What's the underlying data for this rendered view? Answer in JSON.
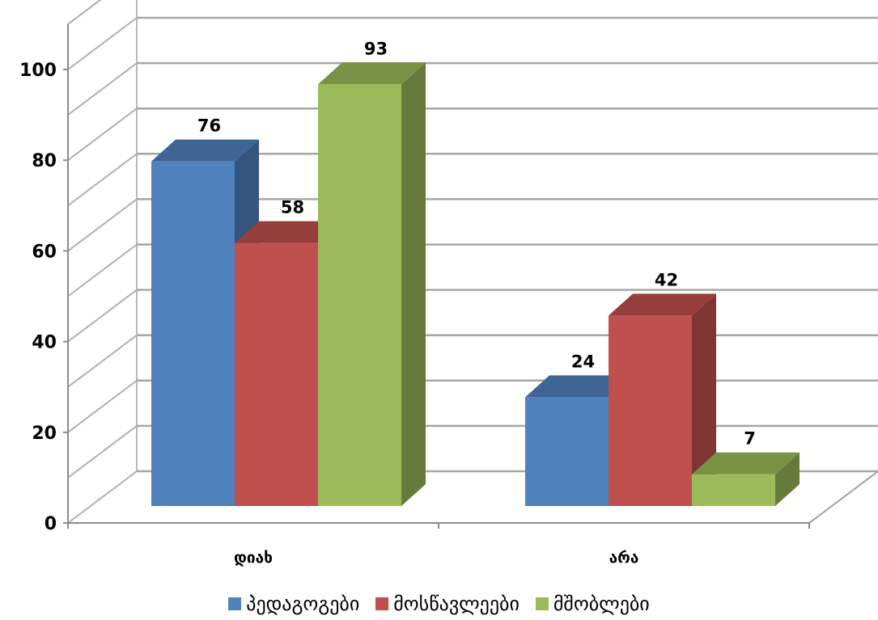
{
  "chart_data": {
    "type": "bar",
    "categories": [
      "დიახ",
      "არა"
    ],
    "series": [
      {
        "name": "პედაგოგები",
        "values": [
          76,
          24
        ],
        "color": "#4F81BD"
      },
      {
        "name": "მოსწავლეები",
        "values": [
          58,
          42
        ],
        "color": "#C0504D"
      },
      {
        "name": "მშობლები",
        "values": [
          93,
          7
        ],
        "color": "#9BBB59"
      }
    ],
    "data_labels": [
      [
        "76",
        "24"
      ],
      [
        "58",
        "42"
      ],
      [
        "93",
        "7"
      ]
    ],
    "ylim": [
      0,
      100
    ],
    "yticks": [
      "0",
      "20",
      "40",
      "60",
      "80",
      "100"
    ],
    "grid": true,
    "legend": "bottom",
    "style": "3d-clustered-column"
  }
}
